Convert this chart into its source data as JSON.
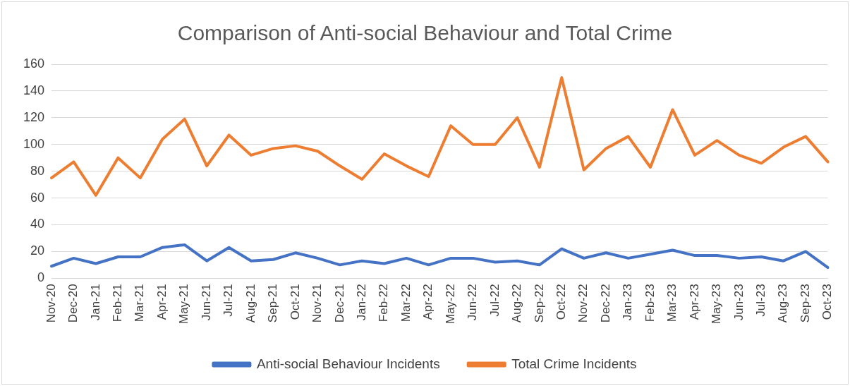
{
  "chart_data": {
    "type": "line",
    "title": "Comparison of Anti-social Behaviour and Total Crime",
    "categories": [
      "Nov-20",
      "Dec-20",
      "Jan-21",
      "Feb-21",
      "Mar-21",
      "Apr-21",
      "May-21",
      "Jun-21",
      "Jul-21",
      "Aug-21",
      "Sep-21",
      "Oct-21",
      "Nov-21",
      "Dec-21",
      "Jan-22",
      "Feb-22",
      "Mar-22",
      "Apr-22",
      "May-22",
      "Jun-22",
      "Jul-22",
      "Aug-22",
      "Sep-22",
      "Oct-22",
      "Nov-22",
      "Dec-22",
      "Jan-23",
      "Feb-23",
      "Mar-23",
      "Apr-23",
      "May-23",
      "Jun-23",
      "Jul-23",
      "Aug-23",
      "Sep-23",
      "Oct-23"
    ],
    "series": [
      {
        "name": "Anti-social Behaviour Incidents",
        "color": "#4472c4",
        "values": [
          9,
          15,
          11,
          16,
          16,
          23,
          25,
          13,
          23,
          13,
          14,
          19,
          15,
          10,
          13,
          11,
          15,
          10,
          15,
          15,
          12,
          13,
          10,
          22,
          15,
          19,
          15,
          18,
          21,
          17,
          17,
          15,
          16,
          13,
          20,
          8
        ]
      },
      {
        "name": "Total Crime Incidents",
        "color": "#ed7d31",
        "values": [
          75,
          87,
          62,
          90,
          75,
          104,
          119,
          84,
          107,
          92,
          97,
          99,
          95,
          84,
          74,
          93,
          84,
          76,
          114,
          100,
          100,
          120,
          83,
          150,
          81,
          97,
          106,
          83,
          126,
          92,
          103,
          92,
          86,
          98,
          106,
          87
        ]
      }
    ],
    "ylim": [
      0,
      160
    ],
    "yticks": [
      0,
      20,
      40,
      60,
      80,
      100,
      120,
      140,
      160
    ],
    "grid": "y",
    "legend": "bottom",
    "marker": "none",
    "line_style": "solid"
  }
}
